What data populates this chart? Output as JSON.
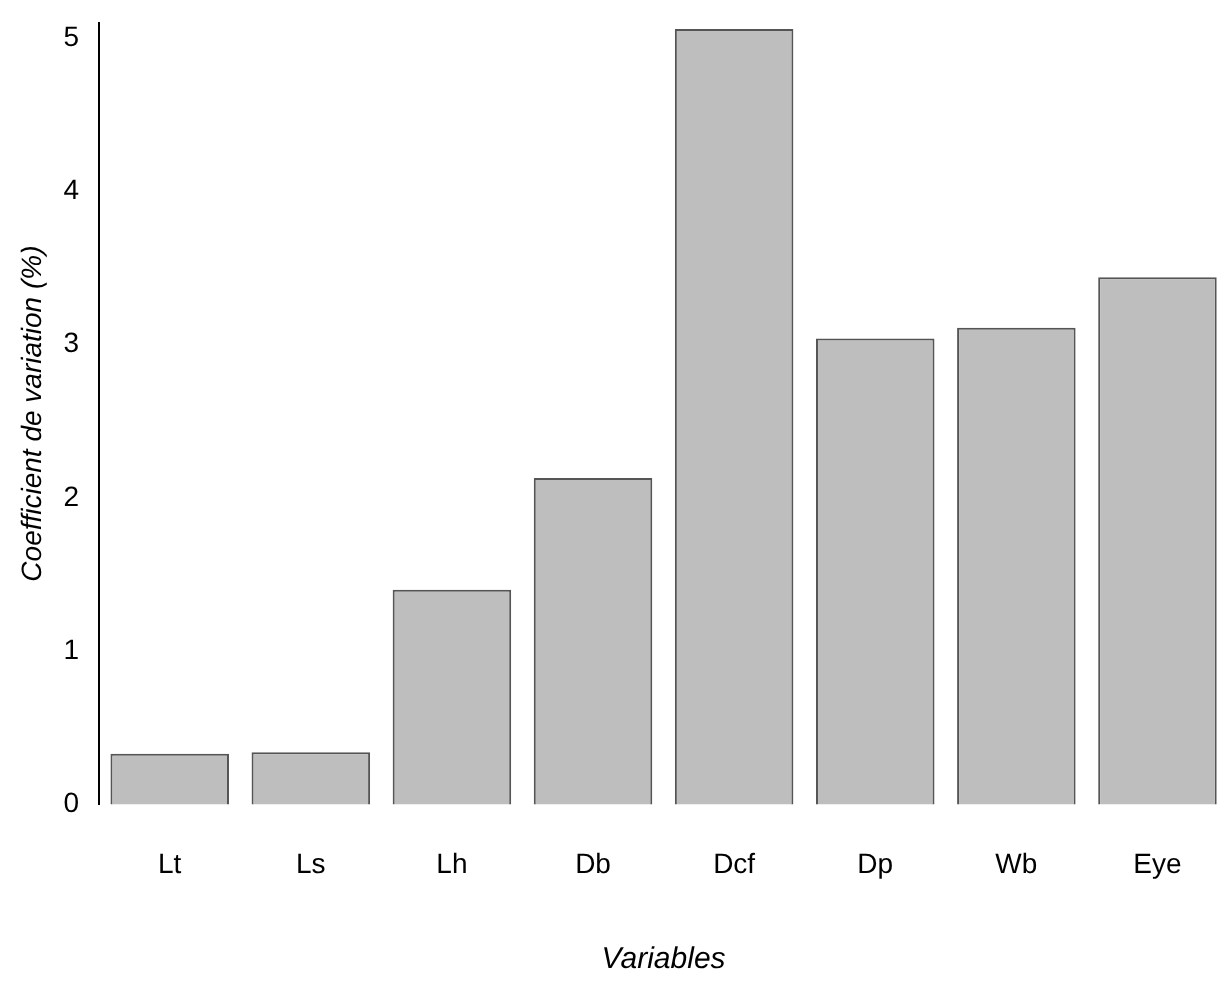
{
  "chart_data": {
    "type": "bar",
    "xlabel": "Variables",
    "ylabel": "Coefficient de variation (%)",
    "categories": [
      "Lt",
      "Ls",
      "Lh",
      "Db",
      "Dcf",
      "Dp",
      "Wb",
      "Eye"
    ],
    "values": [
      0.33,
      0.34,
      1.4,
      2.13,
      5.06,
      3.04,
      3.11,
      3.44
    ],
    "color": "#bebebe",
    "ylim": [
      0,
      5.1
    ],
    "yticks": [
      0,
      1,
      2,
      3,
      4,
      5
    ],
    "grid": false,
    "legend": false
  }
}
